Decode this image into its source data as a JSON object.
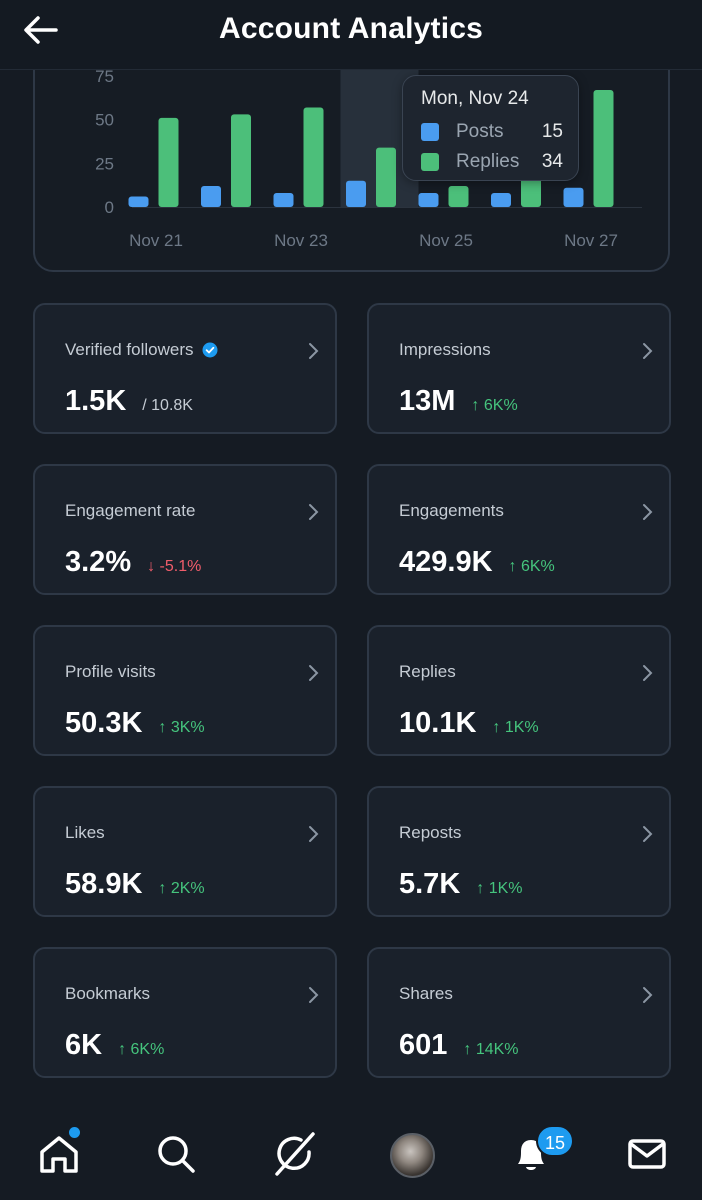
{
  "header": {
    "title": "Account Analytics"
  },
  "chart_data": {
    "type": "bar",
    "categories": [
      "Nov 21",
      "Nov 22",
      "Nov 23",
      "Nov 24",
      "Nov 25",
      "Nov 26",
      "Nov 27"
    ],
    "x_tick_labels": [
      "Nov 21",
      "Nov 23",
      "Nov 25",
      "Nov 27"
    ],
    "y_tick_labels": [
      "0",
      "25",
      "50",
      "75"
    ],
    "series": [
      {
        "name": "Posts",
        "color": "#4a9cf0",
        "values": [
          6,
          12,
          8,
          15,
          8,
          8,
          11
        ]
      },
      {
        "name": "Replies",
        "color": "#4cbf7a",
        "values": [
          51,
          53,
          57,
          34,
          12,
          28,
          67
        ]
      }
    ],
    "ylim": [
      0,
      75
    ],
    "highlight_category": "Nov 24",
    "grid": false
  },
  "tooltip": {
    "title": "Mon, Nov 24",
    "rows": [
      {
        "label": "Posts",
        "value": "15",
        "color": "#4a9cf0"
      },
      {
        "label": "Replies",
        "value": "34",
        "color": "#4cbf7a"
      }
    ]
  },
  "metrics": [
    {
      "label": "Verified followers",
      "value": "1.5K",
      "sub": "/ 10.8K",
      "trend": "neutral",
      "verified": true
    },
    {
      "label": "Impressions",
      "value": "13M",
      "sub": "↑ 6K%",
      "trend": "up"
    },
    {
      "label": "Engagement rate",
      "value": "3.2%",
      "sub": "↓ -5.1%",
      "trend": "down"
    },
    {
      "label": "Engagements",
      "value": "429.9K",
      "sub": "↑ 6K%",
      "trend": "up"
    },
    {
      "label": "Profile visits",
      "value": "50.3K",
      "sub": "↑ 3K%",
      "trend": "up"
    },
    {
      "label": "Replies",
      "value": "10.1K",
      "sub": "↑ 1K%",
      "trend": "up"
    },
    {
      "label": "Likes",
      "value": "58.9K",
      "sub": "↑ 2K%",
      "trend": "up"
    },
    {
      "label": "Reposts",
      "value": "5.7K",
      "sub": "↑ 1K%",
      "trend": "up"
    },
    {
      "label": "Bookmarks",
      "value": "6K",
      "sub": "↑ 6K%",
      "trend": "up"
    },
    {
      "label": "Shares",
      "value": "601",
      "sub": "↑ 14K%",
      "trend": "up"
    }
  ],
  "nav": {
    "items": [
      "home-icon",
      "search-icon",
      "grok-icon",
      "avatar",
      "bell-icon",
      "mail-icon"
    ],
    "notifications_count": "15"
  },
  "colors": {
    "up": "#45c47d",
    "down": "#f05d6b",
    "accent": "#1d9bf0"
  }
}
